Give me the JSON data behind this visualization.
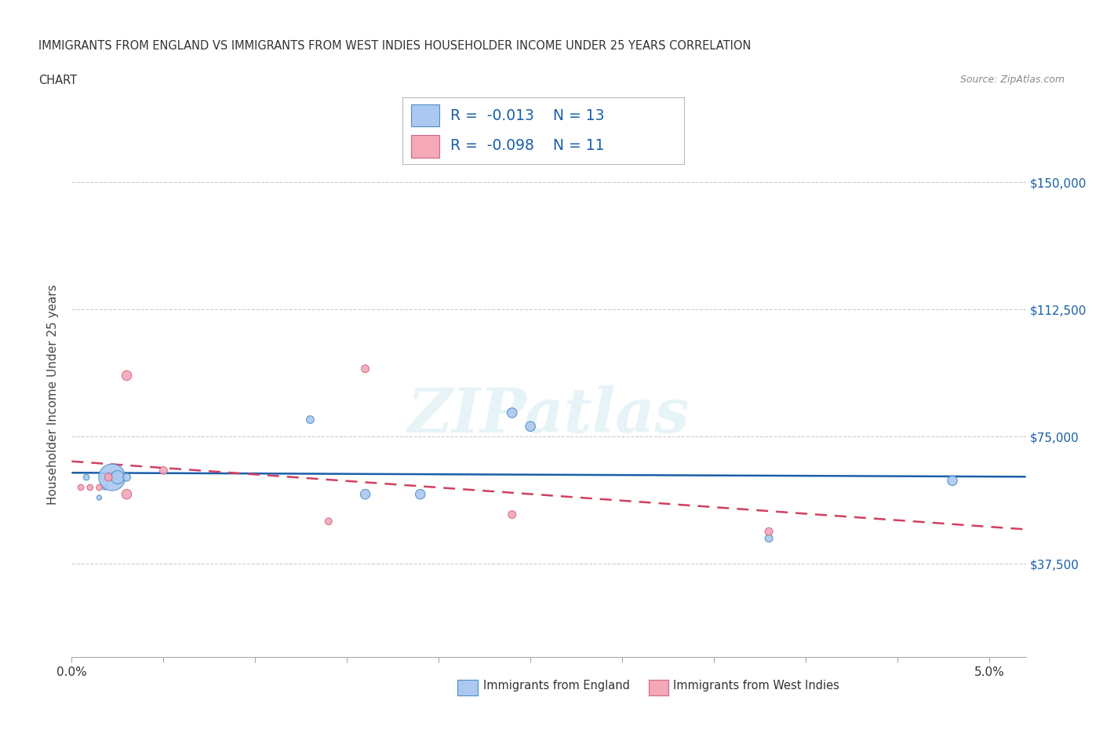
{
  "title_line1": "IMMIGRANTS FROM ENGLAND VS IMMIGRANTS FROM WEST INDIES HOUSEHOLDER INCOME UNDER 25 YEARS CORRELATION",
  "title_line2": "CHART",
  "source": "Source: ZipAtlas.com",
  "ylabel": "Householder Income Under 25 years",
  "england_color": "#aac8f0",
  "england_color_dark": "#5090c8",
  "westindies_color": "#f4a8b8",
  "westindies_color_dark": "#d06880",
  "trend_england_color": "#1a5fa8",
  "trend_westindies_color": "#d04060",
  "R_england": -0.013,
  "N_england": 13,
  "R_westindies": -0.098,
  "N_westindies": 11,
  "xlim": [
    0.0,
    0.052
  ],
  "ylim": [
    10000,
    165000
  ],
  "yticks": [
    37500,
    75000,
    112500,
    150000
  ],
  "xticks": [
    0.0,
    0.005,
    0.01,
    0.015,
    0.02,
    0.025,
    0.03,
    0.035,
    0.04,
    0.045,
    0.05
  ],
  "england_x": [
    0.0008,
    0.0015,
    0.0018,
    0.0022,
    0.0025,
    0.003,
    0.013,
    0.016,
    0.019,
    0.024,
    0.025,
    0.038,
    0.048
  ],
  "england_y": [
    63000,
    57000,
    60000,
    63000,
    63000,
    63000,
    80000,
    58000,
    58000,
    82000,
    78000,
    45000,
    62000
  ],
  "england_sizes": [
    30,
    20,
    20,
    600,
    150,
    50,
    50,
    80,
    80,
    80,
    80,
    50,
    80
  ],
  "westindies_x": [
    0.0005,
    0.001,
    0.0015,
    0.002,
    0.003,
    0.003,
    0.005,
    0.014,
    0.016,
    0.024,
    0.038
  ],
  "westindies_y": [
    60000,
    60000,
    60000,
    63000,
    58000,
    93000,
    65000,
    50000,
    95000,
    52000,
    47000
  ],
  "westindies_sizes": [
    30,
    30,
    30,
    50,
    80,
    80,
    50,
    40,
    50,
    50,
    50
  ],
  "watermark": "ZIPatlas",
  "background_color": "#ffffff",
  "grid_color": "#cccccc",
  "title_color": "#333333",
  "axis_label_color": "#1a5fa8",
  "legend_label1": "Immigrants from England",
  "legend_label2": "Immigrants from West Indies"
}
